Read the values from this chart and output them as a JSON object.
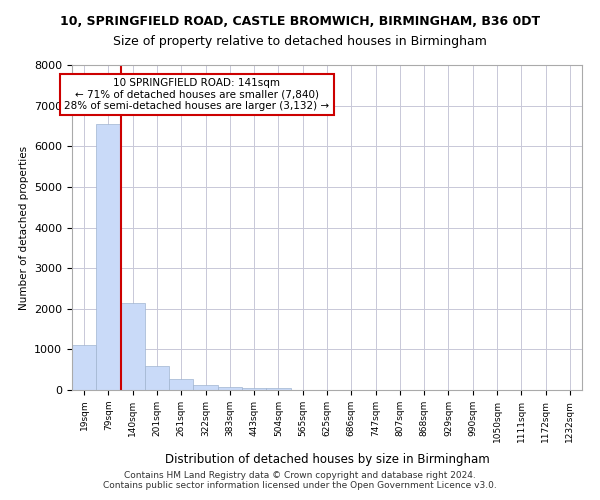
{
  "title_line1": "10, SPRINGFIELD ROAD, CASTLE BROMWICH, BIRMINGHAM, B36 0DT",
  "title_line2": "Size of property relative to detached houses in Birmingham",
  "xlabel": "Distribution of detached houses by size in Birmingham",
  "ylabel": "Number of detached properties",
  "footer_line1": "Contains HM Land Registry data © Crown copyright and database right 2024.",
  "footer_line2": "Contains public sector information licensed under the Open Government Licence v3.0.",
  "annotation_line1": "10 SPRINGFIELD ROAD: 141sqm",
  "annotation_line2": "← 71% of detached houses are smaller (7,840)",
  "annotation_line3": "28% of semi-detached houses are larger (3,132) →",
  "bin_labels": [
    "19sqm",
    "79sqm",
    "140sqm",
    "201sqm",
    "261sqm",
    "322sqm",
    "383sqm",
    "443sqm",
    "504sqm",
    "565sqm",
    "625sqm",
    "686sqm",
    "747sqm",
    "807sqm",
    "868sqm",
    "929sqm",
    "990sqm",
    "1050sqm",
    "1111sqm",
    "1172sqm",
    "1232sqm"
  ],
  "bar_values": [
    1100,
    6550,
    2150,
    580,
    270,
    130,
    80,
    50,
    50,
    0,
    0,
    0,
    0,
    0,
    0,
    0,
    0,
    0,
    0,
    0,
    0
  ],
  "bar_color": "#c9daf8",
  "bar_edge_color": "#a0b4d0",
  "red_line_color": "#cc0000",
  "grid_color": "#c8c8d8",
  "background_color": "#ffffff",
  "ylim": [
    0,
    8000
  ],
  "yticks": [
    0,
    1000,
    2000,
    3000,
    4000,
    5000,
    6000,
    7000,
    8000
  ]
}
